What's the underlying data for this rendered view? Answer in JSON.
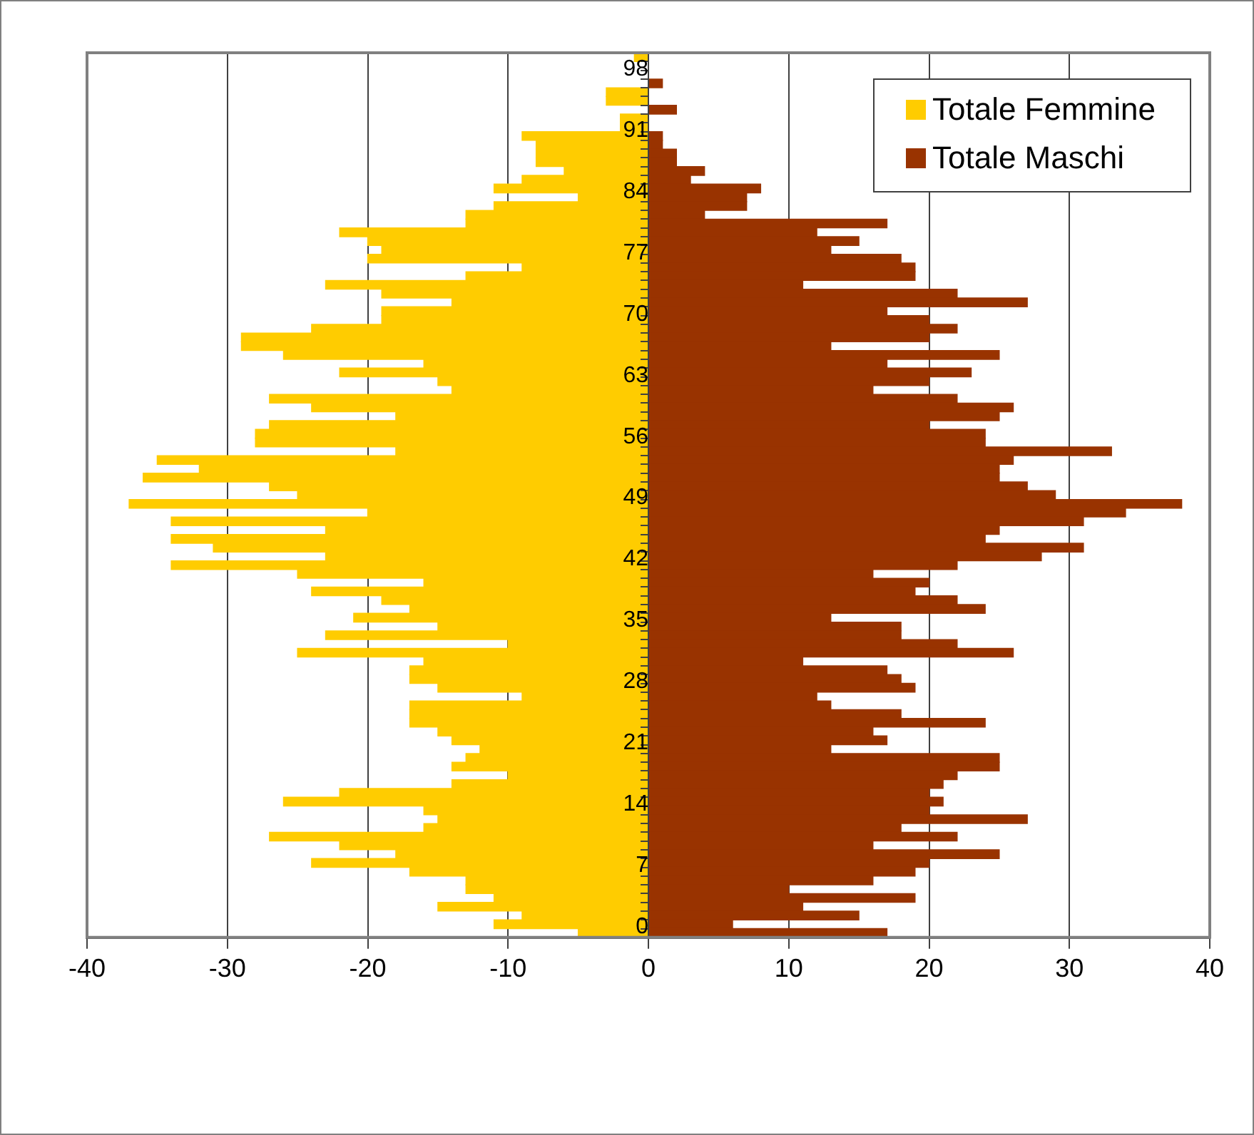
{
  "chart_data": {
    "type": "bar",
    "orientation": "horizontal",
    "stacked": true,
    "categories": [
      null,
      null,
      "98",
      null,
      null,
      null,
      null,
      null,
      null,
      "91",
      null,
      null,
      null,
      null,
      null,
      null,
      "84",
      null,
      null,
      null,
      null,
      null,
      null,
      "77",
      null,
      null,
      null,
      null,
      null,
      null,
      "70",
      null,
      null,
      null,
      null,
      null,
      null,
      "63",
      null,
      null,
      null,
      null,
      null,
      null,
      "56",
      null,
      null,
      null,
      null,
      null,
      null,
      "49",
      null,
      null,
      null,
      null,
      null,
      null,
      "42",
      null,
      null,
      null,
      null,
      null,
      null,
      "35",
      null,
      null,
      null,
      null,
      null,
      null,
      "28",
      null,
      null,
      null,
      null,
      null,
      null,
      "21",
      null,
      null,
      null,
      null,
      null,
      null,
      "14",
      null,
      null,
      null,
      null,
      null,
      null,
      "7",
      null,
      null,
      null,
      null,
      null,
      null,
      "0"
    ],
    "series": [
      {
        "name": "Totale Femmine",
        "color": "#ffcc00",
        "values": [
          -1,
          0,
          0,
          0,
          -3,
          -3,
          0,
          -2,
          -2,
          -9,
          -8,
          -8,
          -8,
          -6,
          -9,
          -11,
          -5,
          -11,
          -13,
          -13,
          -22,
          -20,
          -19,
          -20,
          -9,
          -13,
          -23,
          -19,
          -14,
          -19,
          -19,
          -24,
          -29,
          -29,
          -26,
          -16,
          -22,
          -15,
          -14,
          -27,
          -24,
          -18,
          -27,
          -28,
          -28,
          -18,
          -35,
          -32,
          -36,
          -27,
          -25,
          -37,
          -20,
          -34,
          -23,
          -34,
          -31,
          -23,
          -34,
          -25,
          -16,
          -24,
          -19,
          -17,
          -21,
          -15,
          -23,
          -10,
          -25,
          -16,
          -17,
          -17,
          -15,
          -9,
          -17,
          -17,
          -17,
          -15,
          -14,
          -12,
          -13,
          -14,
          -10,
          -14,
          -22,
          -26,
          -16,
          -15,
          -16,
          -27,
          -22,
          -18,
          -24,
          -17,
          -13,
          -13,
          -11,
          -15,
          -9,
          -11,
          -5
        ]
      },
      {
        "name": "Totale Maschi",
        "color": "#993300",
        "values": [
          0,
          0,
          0,
          1,
          0,
          0,
          2,
          0,
          0,
          1,
          1,
          2,
          2,
          4,
          3,
          8,
          7,
          7,
          4,
          17,
          12,
          15,
          13,
          18,
          19,
          19,
          11,
          22,
          27,
          17,
          20,
          22,
          20,
          13,
          25,
          17,
          23,
          20,
          16,
          22,
          26,
          25,
          20,
          24,
          24,
          33,
          26,
          25,
          25,
          27,
          29,
          38,
          34,
          31,
          25,
          24,
          31,
          28,
          22,
          16,
          20,
          19,
          22,
          24,
          13,
          18,
          18,
          22,
          26,
          11,
          17,
          18,
          19,
          12,
          13,
          18,
          24,
          16,
          17,
          13,
          25,
          25,
          22,
          21,
          20,
          21,
          20,
          27,
          18,
          22,
          16,
          25,
          20,
          19,
          16,
          10,
          19,
          11,
          15,
          6,
          17
        ]
      }
    ],
    "xlim": [
      -40,
      40
    ],
    "xticks": [
      -40,
      -30,
      -20,
      -10,
      0,
      10,
      20,
      30,
      40
    ],
    "grid": "x",
    "legend": "top right"
  }
}
